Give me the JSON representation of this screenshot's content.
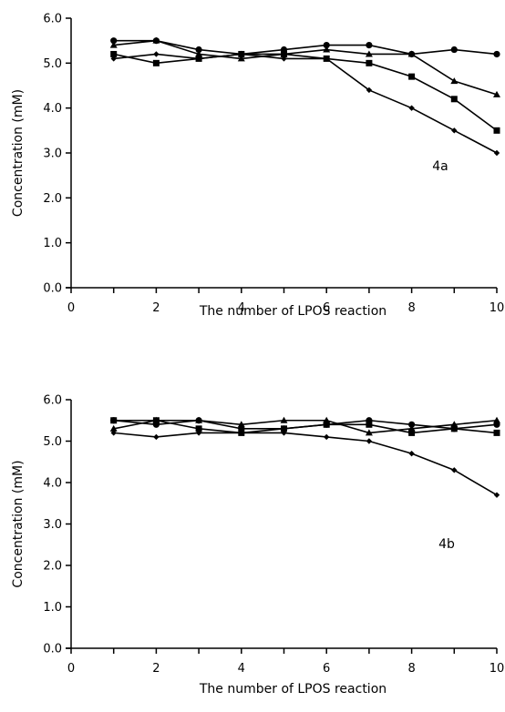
{
  "chart_data": [
    {
      "type": "line",
      "panel_label": "4a",
      "xlabel": "The number of LPOS reaction",
      "ylabel": "Concentration (mM)",
      "xlim": [
        0,
        10
      ],
      "ylim": [
        0,
        6
      ],
      "xticks": [
        "0",
        "2",
        "4",
        "6",
        "8",
        "10"
      ],
      "yticks": [
        "0.0",
        "1.0",
        "2.0",
        "3.0",
        "4.0",
        "5.0",
        "6.0"
      ],
      "grid": false,
      "x": [
        1,
        2,
        3,
        4,
        5,
        6,
        7,
        8,
        9,
        10
      ],
      "series": [
        {
          "marker": "circle",
          "values": [
            5.5,
            5.5,
            5.3,
            5.2,
            5.3,
            5.4,
            5.4,
            5.2,
            5.3,
            5.2
          ]
        },
        {
          "marker": "triangle",
          "values": [
            5.4,
            5.5,
            5.2,
            5.1,
            5.2,
            5.3,
            5.2,
            5.2,
            4.6,
            4.3
          ]
        },
        {
          "marker": "square",
          "values": [
            5.2,
            5.0,
            5.1,
            5.2,
            5.2,
            5.1,
            5.0,
            4.7,
            4.2,
            3.5
          ]
        },
        {
          "marker": "diamond",
          "values": [
            5.1,
            5.2,
            5.1,
            5.2,
            5.1,
            5.1,
            4.4,
            4.0,
            3.5,
            3.0
          ]
        }
      ]
    },
    {
      "type": "line",
      "panel_label": "4b",
      "xlabel": "The number of LPOS reaction",
      "ylabel": "Concentration (mM)",
      "xlim": [
        0,
        10
      ],
      "ylim": [
        0,
        6
      ],
      "xticks": [
        "0",
        "2",
        "4",
        "6",
        "8",
        "10"
      ],
      "yticks": [
        "0.0",
        "1.0",
        "2.0",
        "3.0",
        "4.0",
        "5.0",
        "6.0"
      ],
      "grid": false,
      "x": [
        1,
        2,
        3,
        4,
        5,
        6,
        7,
        8,
        9,
        10
      ],
      "series": [
        {
          "marker": "circle",
          "values": [
            5.5,
            5.4,
            5.5,
            5.3,
            5.3,
            5.4,
            5.5,
            5.4,
            5.3,
            5.4
          ]
        },
        {
          "marker": "triangle",
          "values": [
            5.3,
            5.5,
            5.5,
            5.4,
            5.5,
            5.5,
            5.2,
            5.3,
            5.4,
            5.5
          ]
        },
        {
          "marker": "square",
          "values": [
            5.5,
            5.5,
            5.3,
            5.2,
            5.3,
            5.4,
            5.4,
            5.2,
            5.3,
            5.2
          ]
        },
        {
          "marker": "diamond",
          "values": [
            5.2,
            5.1,
            5.2,
            5.2,
            5.2,
            5.1,
            5.0,
            4.7,
            4.3,
            3.7
          ]
        }
      ]
    }
  ]
}
